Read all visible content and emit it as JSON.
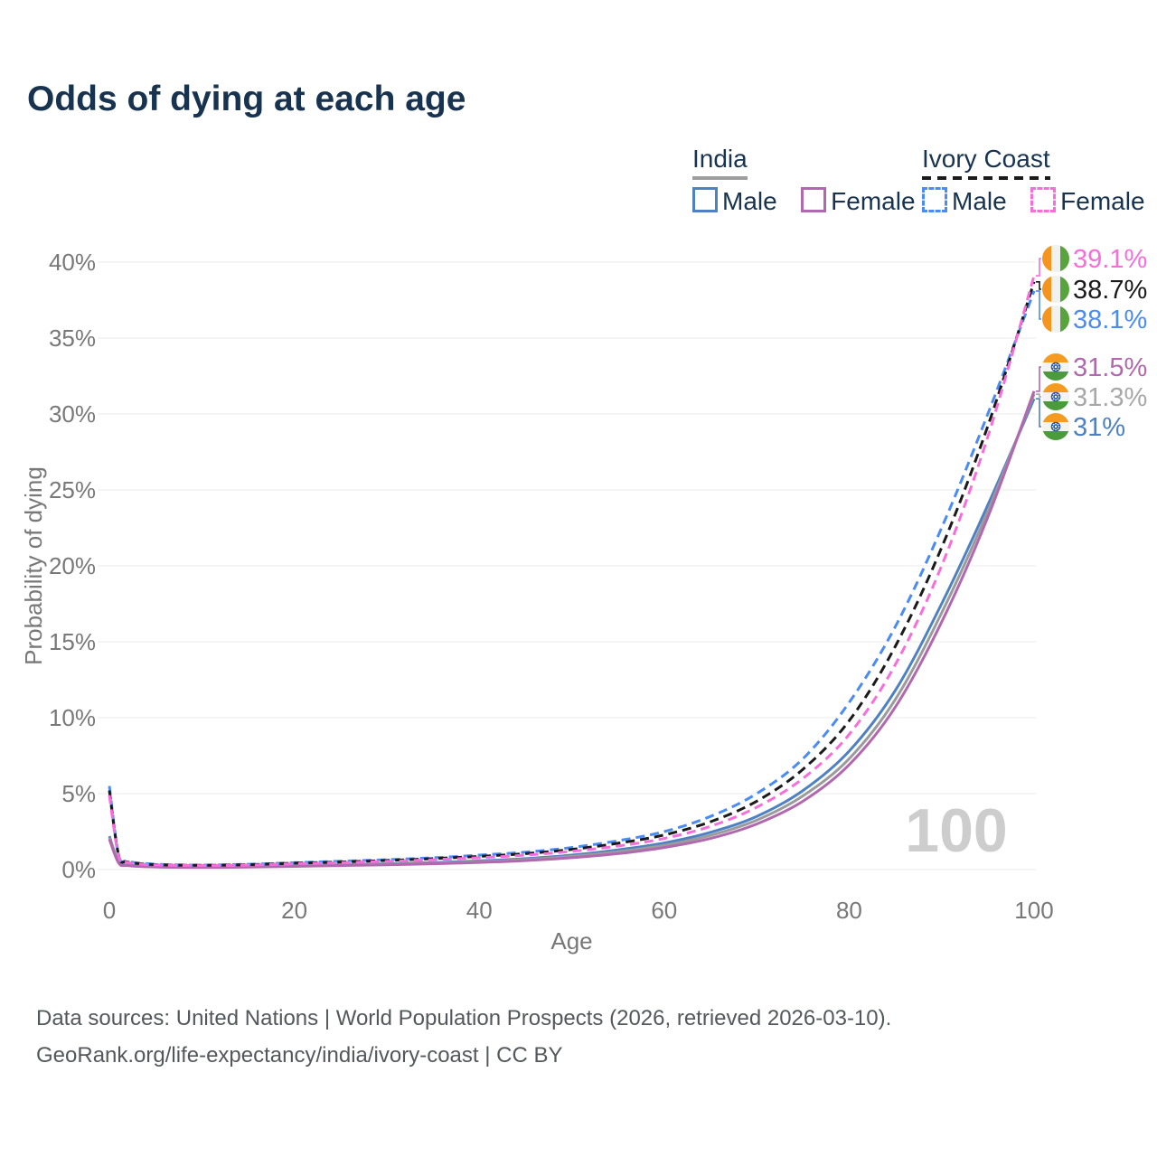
{
  "page": {
    "title": "Odds of dying at each age",
    "footer_line1": "Data sources: United Nations | World Population Prospects (2026, retrieved 2026-03-10).",
    "footer_line2": "GeoRank.org/life-expectancy/india/ivory-coast | CC BY"
  },
  "legend": {
    "groups": [
      {
        "name": "India",
        "underline_style": "solid",
        "underline_color": "#9e9e9e",
        "items": [
          {
            "label": "Male",
            "color": "#4e80c4",
            "dashed": false
          },
          {
            "label": "Female",
            "color": "#b168ae",
            "dashed": false
          }
        ]
      },
      {
        "name": "Ivory Coast",
        "underline_style": "dashed",
        "underline_color": "#1a1a1a",
        "items": [
          {
            "label": "Male",
            "color": "#4b8bf4",
            "dashed": true
          },
          {
            "label": "Female",
            "color": "#f76edb",
            "dashed": true
          }
        ]
      }
    ]
  },
  "chart_data": {
    "type": "line",
    "title": "Odds of dying at each age",
    "xlabel": "Age",
    "ylabel": "Probability of dying",
    "xlim": [
      0,
      100
    ],
    "ylim": [
      0,
      40
    ],
    "x_ticks": [
      0,
      20,
      40,
      60,
      80,
      100
    ],
    "y_ticks": [
      0,
      5,
      10,
      15,
      20,
      25,
      30,
      35,
      40
    ],
    "y_tick_labels": [
      "0%",
      "5%",
      "10%",
      "15%",
      "20%",
      "25%",
      "30%",
      "35%",
      "40%"
    ],
    "grid": true,
    "legend_position": "top-right",
    "watermark": "100",
    "x": [
      0,
      1,
      2,
      5,
      10,
      15,
      20,
      25,
      30,
      35,
      40,
      45,
      50,
      55,
      60,
      65,
      70,
      75,
      80,
      85,
      90,
      95,
      100
    ],
    "series": [
      {
        "name": "India Male",
        "country": "india",
        "sex": "male",
        "color": "#4e80c4",
        "label_color": "#4e80c4",
        "dashed": false,
        "width": 3,
        "end_label": "31%",
        "values": [
          2.2,
          0.5,
          0.3,
          0.2,
          0.17,
          0.2,
          0.27,
          0.32,
          0.38,
          0.46,
          0.57,
          0.72,
          0.95,
          1.3,
          1.75,
          2.45,
          3.5,
          5.2,
          7.8,
          11.8,
          17.5,
          24.0,
          31.0
        ]
      },
      {
        "name": "India",
        "country": "india",
        "sex": "both",
        "color": "#9b9b9b",
        "label_color": "#a8a8a8",
        "dashed": false,
        "width": 3,
        "end_label": "31.3%",
        "values": [
          2.1,
          0.47,
          0.28,
          0.18,
          0.15,
          0.18,
          0.24,
          0.29,
          0.35,
          0.42,
          0.52,
          0.66,
          0.87,
          1.18,
          1.6,
          2.25,
          3.25,
          4.85,
          7.3,
          11.2,
          16.9,
          23.6,
          31.3
        ]
      },
      {
        "name": "India Female",
        "country": "india",
        "sex": "female",
        "color": "#b168ae",
        "label_color": "#b168ae",
        "dashed": false,
        "width": 3,
        "end_label": "31.5%",
        "values": [
          2.0,
          0.44,
          0.26,
          0.17,
          0.14,
          0.16,
          0.21,
          0.26,
          0.31,
          0.38,
          0.47,
          0.59,
          0.78,
          1.05,
          1.45,
          2.05,
          3.0,
          4.5,
          6.9,
          10.7,
          16.3,
          23.2,
          31.5
        ]
      },
      {
        "name": "Ivory Coast Male",
        "country": "ivory-coast",
        "sex": "male",
        "color": "#4b8bf4",
        "label_color": "#4b8bf4",
        "dashed": true,
        "width": 3,
        "end_label": "38.1%",
        "values": [
          5.5,
          1.0,
          0.55,
          0.35,
          0.3,
          0.35,
          0.45,
          0.55,
          0.65,
          0.78,
          0.95,
          1.15,
          1.45,
          1.9,
          2.5,
          3.5,
          5.0,
          7.3,
          11.0,
          16.0,
          22.5,
          30.0,
          38.1
        ]
      },
      {
        "name": "Ivory Coast",
        "country": "ivory-coast",
        "sex": "both",
        "color": "#1a1a1a",
        "label_color": "#1a1a1a",
        "dashed": true,
        "width": 3,
        "end_label": "38.7%",
        "values": [
          5.2,
          0.95,
          0.5,
          0.32,
          0.28,
          0.32,
          0.42,
          0.5,
          0.6,
          0.72,
          0.87,
          1.05,
          1.33,
          1.73,
          2.28,
          3.15,
          4.5,
          6.6,
          9.8,
          14.7,
          21.2,
          29.2,
          38.7
        ]
      },
      {
        "name": "Ivory Coast Female",
        "country": "ivory-coast",
        "sex": "female",
        "color": "#f76edb",
        "label_color": "#f76edb",
        "dashed": true,
        "width": 3,
        "end_label": "39.1%",
        "values": [
          4.9,
          0.9,
          0.47,
          0.3,
          0.26,
          0.29,
          0.38,
          0.45,
          0.54,
          0.65,
          0.78,
          0.95,
          1.2,
          1.55,
          2.05,
          2.85,
          4.1,
          6.0,
          8.9,
          13.5,
          20.0,
          28.5,
          39.1
        ]
      }
    ],
    "colors": {
      "grid": "#ebebeb",
      "axis_text": "#787878",
      "watermark": "#cdcdcd",
      "flag_india_saffron": "#f59b20",
      "flag_india_white": "#f3f3f1",
      "flag_india_green": "#4b9b3c",
      "flag_india_chakra": "#2b55a7",
      "flag_ivorycoast_orange": "#f5941f",
      "flag_ivorycoast_white": "#f1f1ef",
      "flag_ivorycoast_green": "#57a33e"
    }
  }
}
